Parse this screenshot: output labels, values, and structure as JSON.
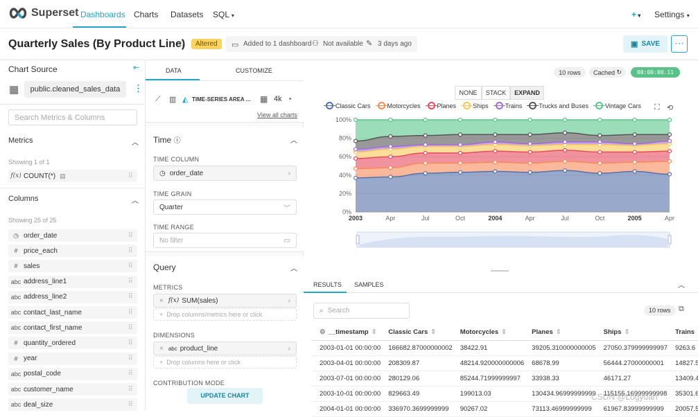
{
  "nav": {
    "brand": "Superset",
    "links": [
      "Dashboards",
      "Charts",
      "Datasets",
      "SQL"
    ],
    "plus": "+",
    "settings": "Settings"
  },
  "titlebar": {
    "title": "Quarterly Sales (By Product Line)",
    "badge": "Altered",
    "added": "Added to 1 dashboard",
    "owner": "Not available",
    "modified": "3 days ago",
    "save": "SAVE",
    "more": "⋯"
  },
  "left": {
    "chart_source": "Chart Source",
    "dataset": "public.cleaned_sales_data",
    "search_placeholder": "Search Metrics & Columns",
    "metrics_title": "Metrics",
    "metrics_count": "Showing 1 of 1",
    "metrics": [
      {
        "type": "f(x)",
        "name": "COUNT(*)"
      }
    ],
    "columns_title": "Columns",
    "columns_count": "Showing 25 of 25",
    "columns": [
      {
        "type": "◷",
        "name": "order_date"
      },
      {
        "type": "#",
        "name": "price_each"
      },
      {
        "type": "#",
        "name": "sales"
      },
      {
        "type": "abc",
        "name": "address_line1"
      },
      {
        "type": "abc",
        "name": "address_line2"
      },
      {
        "type": "abc",
        "name": "contact_last_name"
      },
      {
        "type": "abc",
        "name": "contact_first_name"
      },
      {
        "type": "#",
        "name": "quantity_ordered"
      },
      {
        "type": "#",
        "name": "year"
      },
      {
        "type": "abc",
        "name": "postal_code"
      },
      {
        "type": "abc",
        "name": "customer_name"
      },
      {
        "type": "abc",
        "name": "deal_size"
      }
    ]
  },
  "mid": {
    "tab_data": "DATA",
    "tab_customize": "CUSTOMIZE",
    "viz_name": "TIME-SERIES AREA ...",
    "viz_4k": "4k",
    "view_all": "View all charts",
    "time_title": "Time",
    "time_column_label": "TIME COLUMN",
    "time_column": "order_date",
    "time_grain_label": "TIME GRAIN",
    "time_grain": "Quarter",
    "time_range_label": "TIME RANGE",
    "time_range": "No filter",
    "query_title": "Query",
    "metrics_label": "METRICS",
    "metric": "SUM(sales)",
    "metrics_drop": "Drop columns/metrics here or click",
    "dimensions_label": "DIMENSIONS",
    "dimension": "product_line",
    "dimensions_drop": "Drop columns here or click",
    "contribution_label": "CONTRIBUTION MODE",
    "update": "UPDATE CHART"
  },
  "right": {
    "rows": "10 rows",
    "cached": "Cached",
    "timer": "00:00:00.11",
    "mode_none": "NONE",
    "mode_stack": "STACK",
    "mode_expand": "EXPAND",
    "tab_results": "RESULTS",
    "tab_samples": "SAMPLES",
    "search_placeholder": "Search",
    "rows_pill": "10 rows",
    "table_headers": [
      "__timestamp",
      "Classic Cars",
      "Motorcycles",
      "Planes",
      "Ships",
      "Trains"
    ],
    "table_rows": [
      [
        "2003-01-01 00:00:00",
        "166682.87000000002",
        "38422.91",
        "39205.310000000005",
        "27050.379999999997",
        "9263.6"
      ],
      [
        "2003-04-01 00:00:00",
        "208309.87",
        "48214.920000000006",
        "68678.99",
        "56444.27000000001",
        "14827.5"
      ],
      [
        "2003-07-01 00:00:00",
        "280129.06",
        "85244.71999999997",
        "33938.33",
        "46171.27",
        "13409.4"
      ],
      [
        "2003-10-01 00:00:00",
        "829663.49",
        "199013.03",
        "130434.96999999999",
        "115155.16999999998",
        "35301.6"
      ],
      [
        "2004-01-01 00:00:00",
        "336970.3699999999",
        "90267.02",
        "73113.46999999999",
        "61967.83999999999",
        "20057.5"
      ]
    ]
  },
  "watermark": "CSDN @Logyuan",
  "chart_data": {
    "type": "area",
    "stacking": "expand",
    "x": [
      "2003 Q1",
      "Q2",
      "Q3",
      "Q4",
      "2004 Q1",
      "Q2",
      "Q3",
      "Q4",
      "2005 Q1",
      "Q2"
    ],
    "xticks": [
      "2003",
      "Apr",
      "Jul",
      "Oct",
      "2004",
      "Apr",
      "Jul",
      "Oct",
      "2005",
      "Apr"
    ],
    "yticks": [
      "0%",
      "20%",
      "40%",
      "60%",
      "80%",
      "100%"
    ],
    "ylim": [
      0,
      100
    ],
    "colors": [
      "#5470a8",
      "#f88a5a",
      "#e84a5f",
      "#fac858",
      "#a16bd4",
      "#555555",
      "#59c48a"
    ],
    "series": [
      {
        "name": "Classic Cars",
        "values": [
          37,
          38,
          42,
          43,
          44,
          43,
          45,
          42,
          44,
          41
        ]
      },
      {
        "name": "Motorcycles",
        "values": [
          10,
          10,
          11,
          10,
          10,
          10,
          10,
          11,
          10,
          14
        ]
      },
      {
        "name": "Planes",
        "values": [
          11,
          12,
          11,
          11,
          12,
          12,
          12,
          12,
          11,
          11
        ]
      },
      {
        "name": "Ships",
        "values": [
          7,
          8,
          7,
          7,
          7,
          7,
          6,
          8,
          7,
          8
        ]
      },
      {
        "name": "Trains",
        "values": [
          3,
          3,
          2,
          2,
          3,
          2,
          3,
          3,
          2,
          3
        ]
      },
      {
        "name": "Trucks and Buses",
        "values": [
          9,
          11,
          10,
          11,
          8,
          10,
          10,
          7,
          10,
          7
        ]
      },
      {
        "name": "Vintage Cars",
        "values": [
          23,
          18,
          17,
          16,
          16,
          16,
          14,
          17,
          16,
          16
        ]
      }
    ]
  }
}
